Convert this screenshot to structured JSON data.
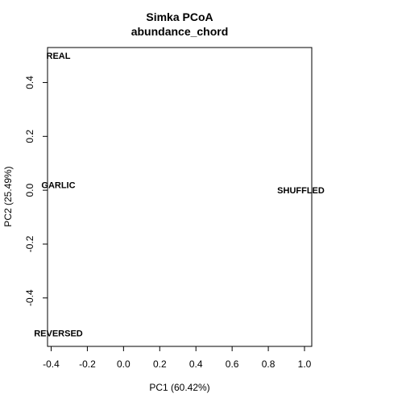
{
  "chart_data": {
    "type": "scatter",
    "title": "Simka PCoA",
    "subtitle": "abundance_chord",
    "xlabel": "PC1 (60.42%)",
    "ylabel": "PC2 (25.49%)",
    "xlim": [
      -0.42,
      1.04
    ],
    "ylim": [
      -0.58,
      0.53
    ],
    "xticks": [
      -0.4,
      -0.2,
      0.0,
      0.2,
      0.4,
      0.6,
      0.8,
      1.0
    ],
    "xtick_labels": [
      "-0.4",
      "-0.2",
      "0.0",
      "0.2",
      "0.4",
      "0.6",
      "0.8",
      "1.0"
    ],
    "yticks": [
      -0.4,
      -0.2,
      0.0,
      0.2,
      0.4
    ],
    "ytick_labels": [
      "-0.4",
      "-0.2",
      "0.0",
      "0.2",
      "0.4"
    ],
    "grid": false,
    "points": [
      {
        "label": "REAL",
        "x": -0.36,
        "y": 0.5
      },
      {
        "label": "GARLIC",
        "x": -0.36,
        "y": 0.02
      },
      {
        "label": "SHUFFLED",
        "x": 0.98,
        "y": 0.0
      },
      {
        "label": "REVERSED",
        "x": -0.36,
        "y": -0.53
      }
    ]
  }
}
